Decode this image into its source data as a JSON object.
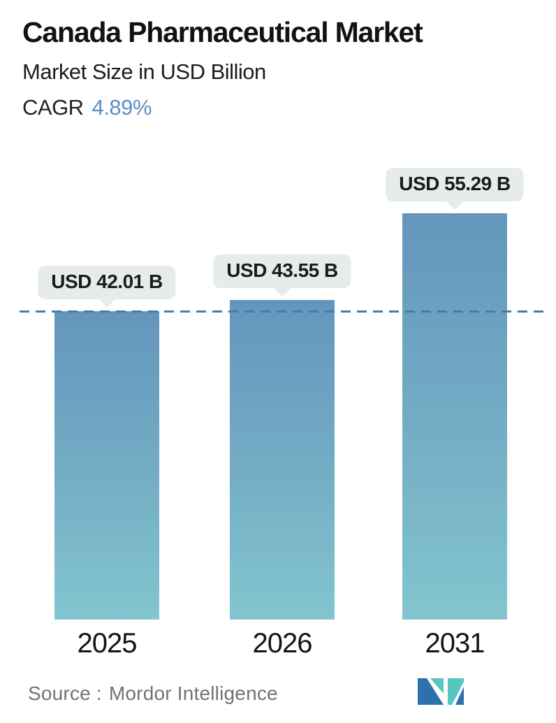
{
  "header": {
    "title": "Canada Pharmaceutical Market",
    "subtitle": "Market Size in USD Billion",
    "cagr_label": "CAGR",
    "cagr_value": "4.89%",
    "cagr_value_color": "#5b8fc0"
  },
  "chart_data": {
    "type": "bar",
    "title": "Canada Pharmaceutical Market",
    "ylabel": "Market Size in USD Billion",
    "categories": [
      "2025",
      "2026",
      "2031"
    ],
    "values": [
      42.01,
      43.55,
      55.29
    ],
    "bar_labels": [
      "USD 42.01 B",
      "USD 43.55 B",
      "USD 55.29 B"
    ],
    "unit": "USD Billion",
    "grid": false,
    "legend": false,
    "reference_line": {
      "value": 42.01,
      "style": "dashed",
      "color": "#4a7aa8",
      "note": "horizontal dashed line at 2025 market size level"
    },
    "bar_color_top": "#6496bd",
    "bar_color_bottom": "#82c5cf",
    "label_bubble_color": "#e6eceb"
  },
  "footer": {
    "source_label": "Source :",
    "source_value": "Mordor Intelligence",
    "logo_name": "mordor-intelligence-logo",
    "logo_colors": {
      "blue": "#2f6fad",
      "teal": "#56c6c0"
    }
  }
}
